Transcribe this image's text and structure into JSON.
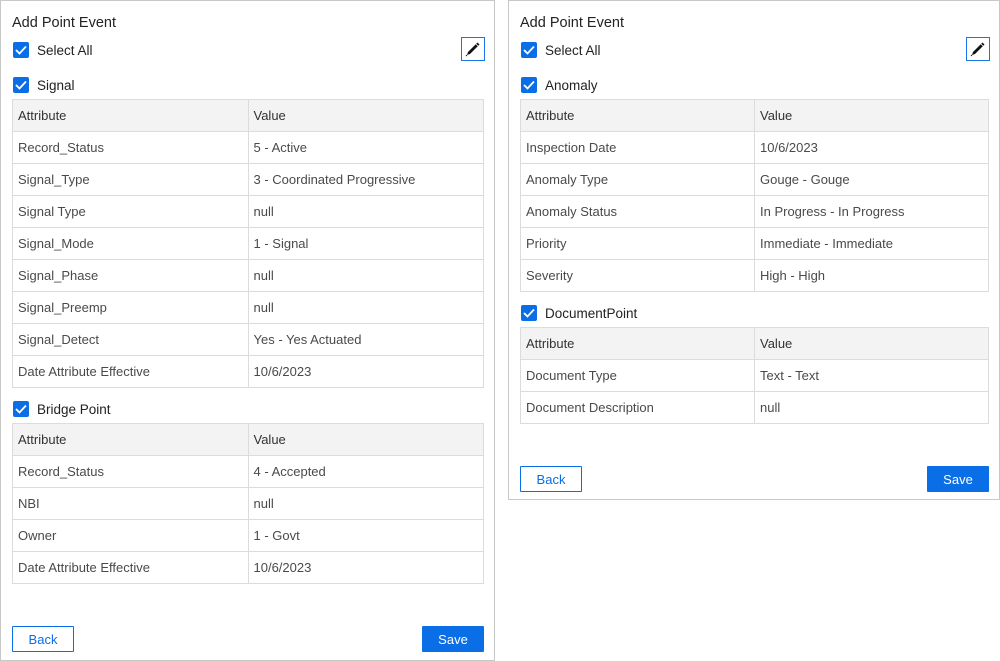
{
  "colors": {
    "accent": "#0a6fe6",
    "header_bg": "#f3f3f3",
    "border": "#dcdcdc"
  },
  "icons": {
    "edit": "pen-icon",
    "checkbox": "checkmark-icon"
  },
  "panels": [
    {
      "title": "Add Point Event",
      "select_all": "Select All",
      "back": "Back",
      "save": "Save",
      "sections": [
        {
          "name": "Signal",
          "columns": [
            "Attribute",
            "Value"
          ],
          "rows": [
            [
              "Record_Status",
              "5 - Active"
            ],
            [
              "Signal_Type",
              "3 - Coordinated Progressive"
            ],
            [
              "Signal Type",
              "null"
            ],
            [
              "Signal_Mode",
              "1 - Signal"
            ],
            [
              "Signal_Phase",
              "null"
            ],
            [
              "Signal_Preemp",
              "null"
            ],
            [
              "Signal_Detect",
              "Yes - Yes Actuated"
            ],
            [
              "Date Attribute Effective",
              "10/6/2023"
            ]
          ]
        },
        {
          "name": "Bridge Point",
          "columns": [
            "Attribute",
            "Value"
          ],
          "rows": [
            [
              "Record_Status",
              "4 - Accepted"
            ],
            [
              "NBI",
              "null"
            ],
            [
              "Owner",
              "1 - Govt"
            ],
            [
              "Date Attribute Effective",
              "10/6/2023"
            ]
          ]
        }
      ]
    },
    {
      "title": "Add Point Event",
      "select_all": "Select All",
      "back": "Back",
      "save": "Save",
      "sections": [
        {
          "name": "Anomaly",
          "columns": [
            "Attribute",
            "Value"
          ],
          "rows": [
            [
              "Inspection Date",
              "10/6/2023"
            ],
            [
              "Anomaly Type",
              "Gouge - Gouge"
            ],
            [
              "Anomaly Status",
              "In Progress - In Progress"
            ],
            [
              "Priority",
              "Immediate - Immediate"
            ],
            [
              "Severity",
              "High - High"
            ]
          ]
        },
        {
          "name": "DocumentPoint",
          "columns": [
            "Attribute",
            "Value"
          ],
          "rows": [
            [
              "Document Type",
              "Text - Text"
            ],
            [
              "Document Description",
              "null"
            ]
          ]
        }
      ]
    }
  ]
}
